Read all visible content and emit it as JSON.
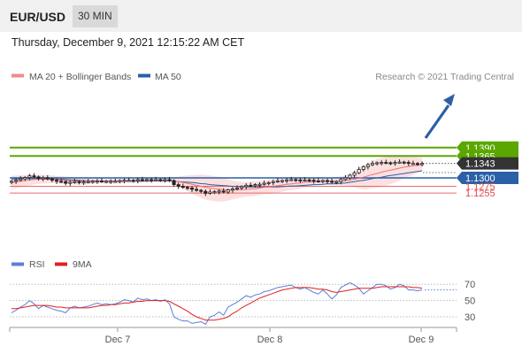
{
  "header": {
    "pair": "EUR/USD",
    "timeframe": "30 MIN"
  },
  "date_text": "Thursday, December 9, 2021 12:15:22 AM CET",
  "credit": "Research © 2021 Trading Central",
  "colors": {
    "green": "#5aa700",
    "blue": "#2b5fa6",
    "red": "#e24a4a",
    "band": "#fbd6d6",
    "candle": "#222222",
    "rsi": "#5b7fd6",
    "ma9": "#e02020",
    "current": "#333333"
  },
  "chart_data": [
    {
      "type": "line",
      "subtype": "candlestick",
      "legend": [
        "MA 20 + Bollinger Bands",
        "MA 50"
      ],
      "x_ticks": [
        "Dec 7",
        "Dec 8",
        "Dec 9"
      ],
      "levels": [
        {
          "value": 1.139,
          "label": "1.1390",
          "kind": "target"
        },
        {
          "value": 1.1365,
          "label": "1.1365",
          "kind": "target"
        },
        {
          "value": 1.1343,
          "label": "1.1343",
          "kind": "current"
        },
        {
          "value": 1.13,
          "label": "1.1300",
          "kind": "pivot"
        },
        {
          "value": 1.1275,
          "label": "1.1275",
          "kind": "support"
        },
        {
          "value": 1.1255,
          "label": "1.1255",
          "kind": "support"
        }
      ],
      "close": [
        1.129,
        1.1293,
        1.1297,
        1.1301,
        1.1306,
        1.1303,
        1.1298,
        1.13,
        1.1297,
        1.1293,
        1.129,
        1.1289,
        1.1284,
        1.1287,
        1.1289,
        1.1287,
        1.1288,
        1.1289,
        1.129,
        1.1291,
        1.129,
        1.129,
        1.129,
        1.129,
        1.1292,
        1.1293,
        1.1293,
        1.1292,
        1.1295,
        1.1294,
        1.1295,
        1.1294,
        1.1295,
        1.1294,
        1.1295,
        1.1292,
        1.128,
        1.1275,
        1.1272,
        1.127,
        1.1266,
        1.1263,
        1.126,
        1.1254,
        1.1258,
        1.1259,
        1.1261,
        1.1258,
        1.1264,
        1.1267,
        1.127,
        1.1274,
        1.1278,
        1.1277,
        1.128,
        1.1281,
        1.1284,
        1.1286,
        1.1289,
        1.1291,
        1.1292,
        1.1294,
        1.1295,
        1.1294,
        1.1293,
        1.1294,
        1.1293,
        1.1291,
        1.129,
        1.1292,
        1.129,
        1.1287,
        1.1289,
        1.1295,
        1.13,
        1.1308,
        1.1315,
        1.1325,
        1.1333,
        1.1339,
        1.1343,
        1.1345,
        1.1346,
        1.1345,
        1.1344,
        1.1346,
        1.1347,
        1.1346,
        1.1343,
        1.1343,
        1.1342,
        1.1343
      ],
      "ma20": [
        1.1286,
        1.1288,
        1.129,
        1.1292,
        1.1294,
        1.1295,
        1.1296,
        1.1296,
        1.1296,
        1.1296,
        1.1295,
        1.1294,
        1.1293,
        1.1292,
        1.1291,
        1.129,
        1.129,
        1.129,
        1.129,
        1.129,
        1.129,
        1.129,
        1.129,
        1.129,
        1.129,
        1.1291,
        1.1291,
        1.1291,
        1.1292,
        1.1292,
        1.1292,
        1.1292,
        1.1293,
        1.1293,
        1.1293,
        1.1293,
        1.1291,
        1.1289,
        1.1286,
        1.1284,
        1.1281,
        1.1278,
        1.1275,
        1.1272,
        1.127,
        1.1268,
        1.1266,
        1.1265,
        1.1264,
        1.1264,
        1.1264,
        1.1265,
        1.1266,
        1.1267,
        1.1268,
        1.127,
        1.1272,
        1.1273,
        1.1275,
        1.1277,
        1.1279,
        1.1281,
        1.1282,
        1.1284,
        1.1285,
        1.1287,
        1.1288,
        1.1289,
        1.129,
        1.129,
        1.129,
        1.129,
        1.129,
        1.1291,
        1.1292,
        1.1294,
        1.1296,
        1.1299,
        1.1302,
        1.1306,
        1.131,
        1.1313,
        1.1317,
        1.132,
        1.1323,
        1.1326,
        1.1329,
        1.1332,
        1.1334,
        1.1336,
        1.1338,
        1.1339
      ],
      "upper": [
        1.1306,
        1.1307,
        1.1308,
        1.1309,
        1.131,
        1.131,
        1.131,
        1.1309,
        1.1308,
        1.1307,
        1.1306,
        1.1305,
        1.1304,
        1.1303,
        1.1302,
        1.1301,
        1.13,
        1.1299,
        1.1298,
        1.1297,
        1.1297,
        1.1297,
        1.1297,
        1.1297,
        1.1297,
        1.1297,
        1.1297,
        1.1297,
        1.1298,
        1.1298,
        1.1298,
        1.1298,
        1.1298,
        1.1298,
        1.1299,
        1.13,
        1.1302,
        1.1304,
        1.1306,
        1.1307,
        1.1308,
        1.1309,
        1.131,
        1.1309,
        1.1307,
        1.1305,
        1.1303,
        1.13,
        1.1296,
        1.1292,
        1.1289,
        1.1288,
        1.1288,
        1.1289,
        1.129,
        1.1291,
        1.1292,
        1.1294,
        1.1296,
        1.1298,
        1.1299,
        1.13,
        1.1301,
        1.1302,
        1.1302,
        1.1302,
        1.1301,
        1.13,
        1.1299,
        1.1299,
        1.13,
        1.1301,
        1.1302,
        1.1304,
        1.1307,
        1.1313,
        1.132,
        1.133,
        1.1338,
        1.1345,
        1.1351,
        1.1356,
        1.136,
        1.1363,
        1.1365,
        1.1366,
        1.1366,
        1.1365,
        1.1364,
        1.1363,
        1.1361,
        1.1359
      ],
      "lower": [
        1.1266,
        1.1269,
        1.1272,
        1.1275,
        1.1278,
        1.128,
        1.1282,
        1.1283,
        1.1284,
        1.1285,
        1.1284,
        1.1283,
        1.1282,
        1.1281,
        1.128,
        1.1279,
        1.128,
        1.1281,
        1.1282,
        1.1283,
        1.1283,
        1.1283,
        1.1283,
        1.1283,
        1.1283,
        1.1285,
        1.1285,
        1.1285,
        1.1286,
        1.1286,
        1.1286,
        1.1286,
        1.1288,
        1.1288,
        1.1287,
        1.1286,
        1.128,
        1.1274,
        1.1266,
        1.1261,
        1.1254,
        1.1247,
        1.124,
        1.1235,
        1.1233,
        1.1231,
        1.1229,
        1.123,
        1.1232,
        1.1236,
        1.1239,
        1.1242,
        1.1244,
        1.1245,
        1.1246,
        1.1249,
        1.1252,
        1.1252,
        1.1254,
        1.1256,
        1.1259,
        1.1262,
        1.1263,
        1.1266,
        1.1268,
        1.1272,
        1.1275,
        1.1278,
        1.1281,
        1.1281,
        1.128,
        1.1279,
        1.1278,
        1.1278,
        1.1277,
        1.1275,
        1.1272,
        1.1268,
        1.1266,
        1.1267,
        1.1269,
        1.127,
        1.1274,
        1.1277,
        1.1281,
        1.1286,
        1.1292,
        1.1299,
        1.1304,
        1.1309,
        1.1315,
        1.1319
      ],
      "ma50": [
        1.1296,
        1.1297,
        1.1297,
        1.1298,
        1.1298,
        1.1298,
        1.1298,
        1.1298,
        1.1297,
        1.1297,
        1.1296,
        1.1296,
        1.1295,
        1.1294,
        1.1294,
        1.1293,
        1.1292,
        1.1291,
        1.1291,
        1.129,
        1.129,
        1.129,
        1.129,
        1.129,
        1.129,
        1.129,
        1.129,
        1.129,
        1.129,
        1.129,
        1.1291,
        1.1291,
        1.1291,
        1.1291,
        1.1291,
        1.1291,
        1.129,
        1.1289,
        1.1288,
        1.1287,
        1.1286,
        1.1285,
        1.1283,
        1.1282,
        1.128,
        1.1279,
        1.1278,
        1.1277,
        1.1276,
        1.1275,
        1.1274,
        1.1274,
        1.1273,
        1.1273,
        1.1273,
        1.1273,
        1.1273,
        1.1273,
        1.1273,
        1.1273,
        1.1274,
        1.1275,
        1.1276,
        1.1276,
        1.1277,
        1.1278,
        1.1279,
        1.128,
        1.128,
        1.1281,
        1.1282,
        1.1282,
        1.1283,
        1.1284,
        1.1285,
        1.1287,
        1.1289,
        1.1291,
        1.1293,
        1.1295,
        1.1298,
        1.13,
        1.1302,
        1.1305,
        1.1307,
        1.1309,
        1.1311,
        1.1313,
        1.1315,
        1.1317,
        1.1319,
        1.1321
      ]
    },
    {
      "type": "line",
      "legend": [
        "RSI",
        "9MA"
      ],
      "y_ticks": [
        70,
        50,
        30
      ],
      "rsi": [
        35,
        38,
        42,
        45,
        50,
        46,
        40,
        44,
        42,
        40,
        38,
        37,
        35,
        41,
        43,
        41,
        42,
        43,
        45,
        47,
        45,
        46,
        45,
        46,
        48,
        51,
        50,
        48,
        53,
        51,
        52,
        50,
        51,
        49,
        51,
        46,
        30,
        27,
        25,
        25,
        22,
        23,
        24,
        21,
        30,
        32,
        36,
        32,
        42,
        45,
        48,
        52,
        56,
        54,
        57,
        58,
        61,
        62,
        64,
        66,
        67,
        68,
        69,
        66,
        64,
        66,
        63,
        60,
        58,
        63,
        58,
        52,
        57,
        66,
        69,
        72,
        69,
        65,
        58,
        62,
        66,
        70,
        70,
        68,
        64,
        66,
        70,
        68,
        63,
        63,
        62,
        63
      ],
      "ma9": [
        40,
        40,
        41,
        42,
        43,
        44,
        44,
        44,
        44,
        43,
        42,
        42,
        41,
        41,
        41,
        41,
        41,
        41,
        42,
        43,
        44,
        44,
        45,
        45,
        46,
        47,
        47,
        48,
        49,
        49,
        50,
        50,
        50,
        50,
        50,
        49,
        46,
        43,
        40,
        37,
        33,
        30,
        28,
        26,
        26,
        26,
        27,
        28,
        30,
        34,
        37,
        41,
        44,
        47,
        50,
        53,
        55,
        57,
        59,
        61,
        63,
        64,
        65,
        66,
        66,
        66,
        66,
        65,
        64,
        64,
        63,
        61,
        60,
        61,
        62,
        63,
        64,
        65,
        65,
        65,
        65,
        66,
        67,
        67,
        67,
        67,
        67,
        67,
        67,
        66,
        66,
        65
      ]
    }
  ]
}
